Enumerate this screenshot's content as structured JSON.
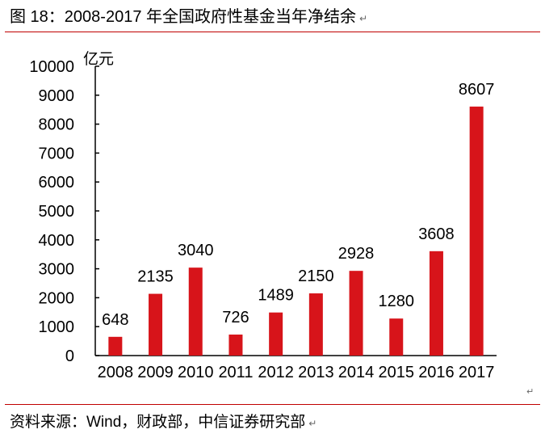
{
  "header": {
    "title": "图 18：2008-2017 年全国政府性基金当年净结余"
  },
  "footer": {
    "source": "资料来源：Wind，财政部，中信证券研究部"
  },
  "colors": {
    "bar": "#d7141a",
    "rule": "#c00000",
    "axis": "#000000"
  },
  "chart_data": {
    "type": "bar",
    "title": "图 18：2008-2017 年全国政府性基金当年净结余",
    "xlabel": "",
    "ylabel": "亿元",
    "categories": [
      "2008",
      "2009",
      "2010",
      "2011",
      "2012",
      "2013",
      "2014",
      "2015",
      "2016",
      "2017"
    ],
    "values": [
      648,
      2135,
      3040,
      726,
      1489,
      2150,
      2928,
      1280,
      3608,
      8607
    ],
    "data_labels": [
      "648",
      "2135",
      "3040",
      "726",
      "1489",
      "2150",
      "2928",
      "1280",
      "3608",
      "8607"
    ],
    "ylim": [
      0,
      10000
    ],
    "yticks": [
      "0",
      "1000",
      "2000",
      "3000",
      "4000",
      "5000",
      "6000",
      "7000",
      "8000",
      "9000",
      "10000"
    ],
    "grid": false,
    "legend": "none"
  }
}
